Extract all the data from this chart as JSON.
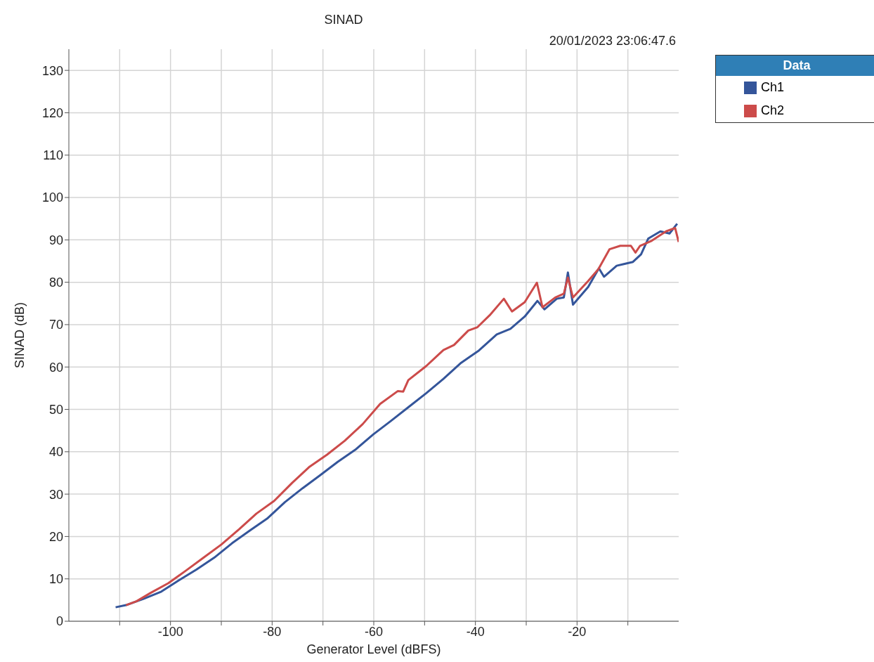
{
  "chart_data": {
    "type": "line",
    "title": "SINAD",
    "subtitle": "20/01/2023 23:06:47.6",
    "xlabel": "Generator Level (dBFS)",
    "ylabel": "SINAD (dB)",
    "legend_title": "Data",
    "xlim": [
      -120,
      0
    ],
    "ylim": [
      0,
      135
    ],
    "xticks": [
      {
        "value": -110,
        "label": null
      },
      -100,
      {
        "value": -90,
        "label": null
      },
      -80,
      {
        "value": -70,
        "label": null
      },
      -60,
      {
        "value": -50,
        "label": null
      },
      -40,
      {
        "value": -30,
        "label": null
      },
      -20,
      {
        "value": -10,
        "label": null
      }
    ],
    "yticks": [
      0,
      10,
      20,
      30,
      40,
      50,
      60,
      70,
      80,
      90,
      100,
      110,
      120,
      130
    ],
    "grid": true,
    "legend": "top right",
    "line_style": "solid",
    "series": [
      {
        "name": "Ch1",
        "color": "#34559a",
        "x": [
          -110.8,
          -108.75,
          -105.3,
          -101.8,
          -98.3,
          -94.9,
          -91.4,
          -87.9,
          -84.4,
          -81,
          -77.5,
          -74,
          -70.6,
          -67.1,
          -63.6,
          -60.1,
          -56.7,
          -53.2,
          -49.7,
          -46.3,
          -42.8,
          -39.3,
          -35.8,
          -33.1,
          -30.3,
          -27.8,
          -26.4,
          -24,
          -22.6,
          -21.8,
          -20.8,
          -17.8,
          -15.7,
          -14.7,
          -12.2,
          -10.8,
          -9,
          -7.4,
          -6,
          -3.6,
          -1.8,
          -0.3
        ],
        "values": [
          3.3,
          3.8,
          5.3,
          7,
          9.7,
          12.2,
          15,
          18.4,
          21.4,
          24.2,
          28.1,
          31.4,
          34.4,
          37.6,
          40.5,
          44.1,
          47.2,
          50.5,
          53.8,
          57.2,
          61,
          63.9,
          67.7,
          69,
          71.9,
          75.6,
          73.6,
          76.1,
          76.4,
          82.3,
          74.7,
          78.9,
          83.3,
          81.3,
          83.9,
          84.3,
          84.8,
          86.6,
          90.3,
          92,
          91.5,
          93.8
        ]
      },
      {
        "name": "Ch2",
        "color": "#cc4b4a",
        "x": [
          -108.75,
          -106.7,
          -103.9,
          -100.4,
          -96.9,
          -93.5,
          -90,
          -86.5,
          -83.1,
          -79.6,
          -76.1,
          -72.6,
          -69.2,
          -65.7,
          -62.2,
          -58.75,
          -55.3,
          -54.2,
          -53.2,
          -49.7,
          -46.3,
          -44.2,
          -41.4,
          -39.6,
          -37.2,
          -34.4,
          -32.8,
          -30.3,
          -27.9,
          -26.8,
          -24.3,
          -22.6,
          -21.8,
          -20.8,
          -17.8,
          -15.8,
          -13.6,
          -11.5,
          -9.4,
          -8.5,
          -7.6,
          -5.3,
          -2.5,
          -0.7,
          0
        ],
        "values": [
          3.8,
          4.7,
          6.7,
          9,
          12,
          15,
          18.1,
          21.7,
          25.4,
          28.4,
          32.6,
          36.5,
          39.3,
          42.6,
          46.5,
          51.3,
          54.3,
          54.2,
          56.9,
          60.2,
          64,
          65.2,
          68.6,
          69.4,
          72.2,
          76.1,
          73.1,
          75.3,
          79.9,
          74.1,
          76.4,
          77.3,
          81.1,
          76.4,
          80.3,
          83.1,
          87.8,
          88.6,
          88.6,
          87,
          88.6,
          89.8,
          92,
          92.8,
          89.5
        ]
      }
    ]
  }
}
